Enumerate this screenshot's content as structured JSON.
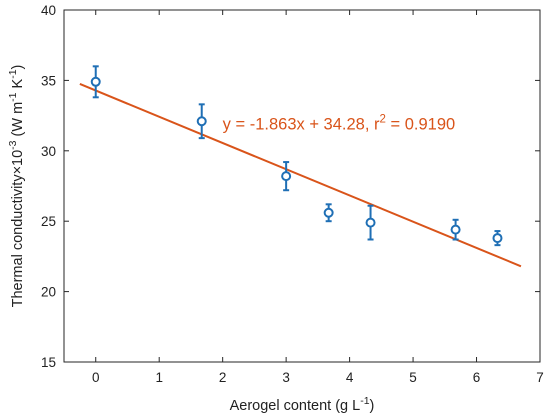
{
  "chart_data": {
    "type": "scatter",
    "xlabel": {
      "base": "Aerogel content (g L",
      "sup": "-1",
      "end": ")"
    },
    "ylabel": {
      "base": "Thermal conductivity×10",
      "sup1": "-3",
      "mid": " (W m",
      "sup2": "-1",
      "mid2": " K",
      "sup3": "-1",
      "end": ")"
    },
    "xlim": [
      -0.5,
      7
    ],
    "ylim": [
      15,
      40
    ],
    "xticks": [
      "0",
      "1",
      "2",
      "3",
      "4",
      "5",
      "6",
      "7"
    ],
    "yticks": [
      "15",
      "20",
      "25",
      "30",
      "35",
      "40"
    ],
    "grid": false,
    "series": [
      {
        "marker": "open-circle",
        "color": "#1f6fb5",
        "points": [
          {
            "x": 0,
            "y": 34.9,
            "err": 1.1
          },
          {
            "x": 1.67,
            "y": 32.1,
            "err": 1.2
          },
          {
            "x": 3.0,
            "y": 28.2,
            "err": 1.0
          },
          {
            "x": 3.67,
            "y": 25.6,
            "err": 0.6
          },
          {
            "x": 4.33,
            "y": 24.9,
            "err": 1.2
          },
          {
            "x": 5.67,
            "y": 24.4,
            "err": 0.7
          },
          {
            "x": 6.33,
            "y": 23.8,
            "err": 0.5
          }
        ]
      }
    ],
    "fit_line": {
      "slope": -1.863,
      "intercept": 34.28,
      "x_range": [
        -0.25,
        6.7
      ],
      "color": "#d9541a"
    },
    "annotation": {
      "text": "y = -1.863x + 34.28, r",
      "sup": "2",
      "tail": " = 0.9190",
      "color": "#d9541a",
      "at": [
        2.0,
        31.5
      ]
    }
  }
}
